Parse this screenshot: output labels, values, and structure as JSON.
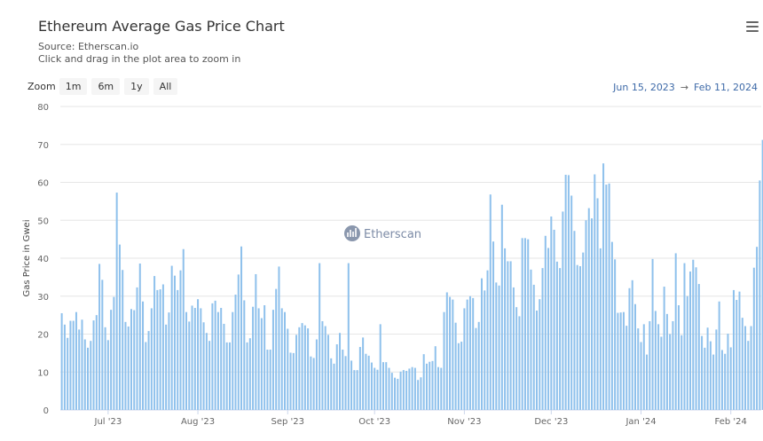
{
  "header": {
    "title": "Ethereum Average Gas Price Chart",
    "source": "Source: Etherscan.io",
    "hint": "Click and drag in the plot area to zoom in"
  },
  "zoom": {
    "label": "Zoom",
    "buttons": [
      "1m",
      "6m",
      "1y",
      "All"
    ]
  },
  "range": {
    "from": "Jun 15, 2023",
    "arrow": "→",
    "to": "Feb 11, 2024"
  },
  "watermark": "Etherscan",
  "menu_icon": "hamburger-menu-icon",
  "colors": {
    "bar": "#8fc1ec",
    "axis_text": "#666666",
    "range_text": "#3e6aa8"
  },
  "chart_data": {
    "type": "bar",
    "xlabel": "",
    "ylabel": "Gas Price in Gwei",
    "ylim": [
      0,
      80
    ],
    "yticks": [
      0,
      10,
      20,
      30,
      40,
      50,
      60,
      70,
      80
    ],
    "grid": true,
    "x_start": "2023-06-15",
    "x_end": "2024-02-11",
    "xticks": [
      {
        "label": "Jul '23",
        "date": "2023-07-01"
      },
      {
        "label": "Aug '23",
        "date": "2023-08-01"
      },
      {
        "label": "Sep '23",
        "date": "2023-09-01"
      },
      {
        "label": "Oct '23",
        "date": "2023-10-01"
      },
      {
        "label": "Nov '23",
        "date": "2023-11-01"
      },
      {
        "label": "Dec '23",
        "date": "2023-12-01"
      },
      {
        "label": "Jan '24",
        "date": "2024-01-01"
      },
      {
        "label": "Feb '24",
        "date": "2024-02-01"
      }
    ],
    "values": [
      25.5,
      22.5,
      19,
      23.5,
      23.5,
      25.8,
      21.2,
      23.8,
      18.6,
      16.4,
      18.2,
      23.6,
      25,
      38.5,
      34.3,
      21.8,
      18.4,
      26.4,
      29.8,
      57.3,
      43.6,
      36.9,
      23.2,
      22,
      26.6,
      26.3,
      32.3,
      38.6,
      28.6,
      17.9,
      20.8,
      26.8,
      35.3,
      31.6,
      31.8,
      33.1,
      22.5,
      25.7,
      38,
      35.4,
      31.6,
      36.8,
      42.4,
      25.8,
      23.3,
      27.5,
      26.9,
      29.2,
      26.8,
      23.1,
      20.3,
      18.2,
      28.1,
      28.8,
      25.8,
      26.9,
      22.7,
      17.8,
      17.8,
      25.8,
      30.4,
      35.7,
      43.1,
      28.9,
      17.8,
      18.9,
      27.2,
      35.8,
      26.8,
      24.2,
      27.6,
      15.9,
      15.9,
      26.4,
      31.9,
      37.8,
      26.8,
      25.8,
      21.4,
      15.1,
      15,
      19.8,
      21.8,
      22.9,
      22.3,
      21.5,
      14.1,
      13.7,
      18.6,
      38.7,
      23.4,
      22.1,
      19.8,
      13.6,
      12.2,
      17.3,
      20.3,
      15.9,
      14.2,
      38.7,
      13,
      10.5,
      10.5,
      16.6,
      19.1,
      14.8,
      14.3,
      12.5,
      11.1,
      10.6,
      22.6,
      12.6,
      12.6,
      11.1,
      9.8,
      8.5,
      8.2,
      10.1,
      10.5,
      10.3,
      10.9,
      11.3,
      11.1,
      7.9,
      8.6,
      14.7,
      12.2,
      12.7,
      12.9,
      16.8,
      11.3,
      11.1,
      25.8,
      31,
      29.8,
      29.1,
      23,
      17.6,
      18,
      26.8,
      29.1,
      30,
      29.5,
      21.6,
      23.2,
      34.7,
      31.5,
      36.8,
      56.8,
      44.4,
      33.6,
      32.8,
      54.1,
      42.6,
      39.2,
      39.2,
      32.3,
      27.1,
      24.7,
      45.3,
      45.3,
      45,
      37,
      33,
      26.2,
      29.2,
      37.4,
      45.9,
      42.7,
      51,
      47.5,
      39.1,
      37.4,
      52.3,
      62,
      61.9,
      56.5,
      47.2,
      38.2,
      37.9,
      41.5,
      50,
      53.2,
      50.5,
      62.1,
      55.8,
      42.6,
      65,
      59.4,
      59.7,
      44.3,
      39.7,
      25.6,
      25.7,
      25.8,
      22.2,
      32.1,
      34.2,
      27.9,
      21.5,
      17.9,
      22.6,
      14.6,
      23.4,
      39.8,
      26.1,
      22.6,
      19.3,
      32.5,
      25.3,
      20,
      23.4,
      41.3,
      27.6,
      19.7,
      38.7,
      30,
      36.5,
      39.6,
      37.6,
      33.2,
      19.5,
      16.4,
      21.7,
      18.1,
      14.6,
      21.2,
      28.6,
      15.8,
      14.8,
      20.1,
      16.5,
      31.6,
      29,
      31.2,
      24.3,
      22.1,
      18.2,
      22.1,
      37.5,
      43,
      60.5,
      71.2,
      38.5,
      30.1
    ]
  }
}
